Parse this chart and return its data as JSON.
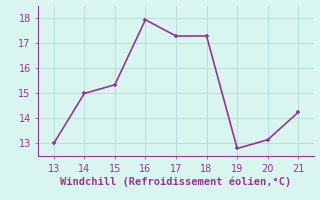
{
  "x": [
    13,
    14,
    15,
    16,
    17,
    18,
    19,
    20,
    21
  ],
  "y": [
    13.0,
    15.0,
    15.35,
    17.95,
    17.3,
    17.3,
    12.8,
    13.15,
    14.25
  ],
  "line_color": "#993399",
  "marker_color": "#993399",
  "bg_color": "#d8f5f0",
  "grid_color": "#b0ddd8",
  "xlabel": "Windchill (Refroidissement éolien,°C)",
  "xlabel_color": "#993399",
  "xlim": [
    12.5,
    21.5
  ],
  "ylim": [
    12.5,
    18.5
  ],
  "xticks": [
    13,
    14,
    15,
    16,
    17,
    18,
    19,
    20,
    21
  ],
  "yticks": [
    13,
    14,
    15,
    16,
    17,
    18
  ],
  "tick_color": "#993399",
  "tick_fontsize": 7,
  "xlabel_fontsize": 7.5,
  "linewidth": 1.2,
  "markersize": 3
}
